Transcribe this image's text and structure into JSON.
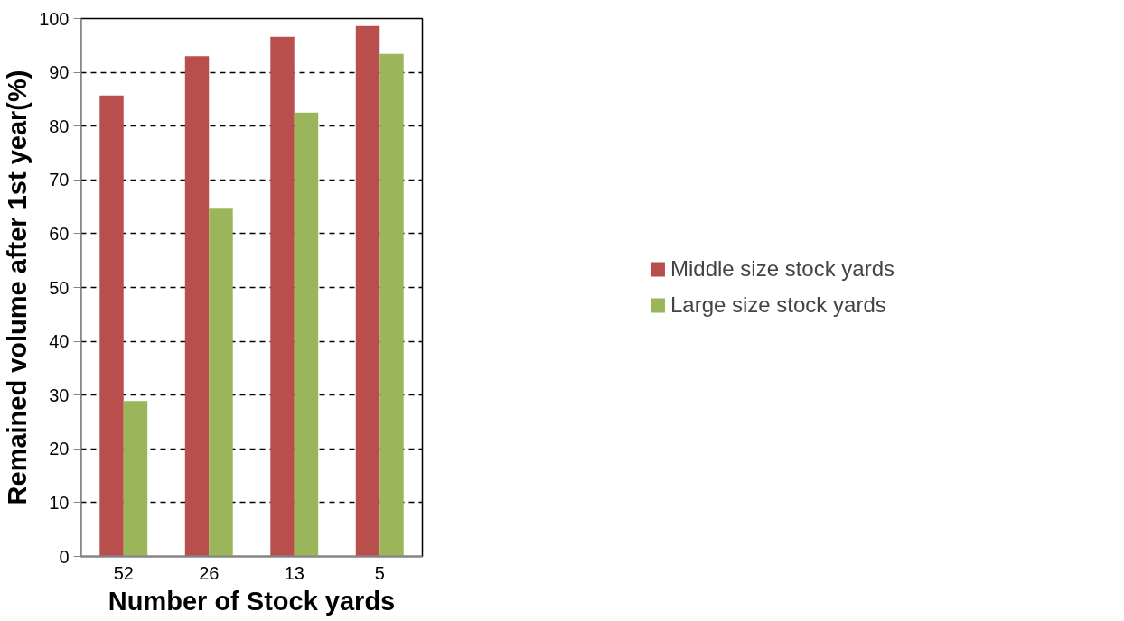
{
  "chart_data": {
    "type": "bar",
    "xlabel": "Number of Stock yards",
    "ylabel": "Remained volume after 1st year(%)",
    "categories": [
      "52",
      "26",
      "13",
      "5"
    ],
    "series": [
      {
        "name": "Middle size stock yards",
        "color": "#b94f4c",
        "values": [
          85.7,
          93.0,
          96.6,
          98.6
        ]
      },
      {
        "name": "Large size stock yards",
        "color": "#9bb55a",
        "values": [
          28.9,
          64.8,
          82.5,
          93.4
        ]
      }
    ],
    "ylim": [
      0,
      100
    ],
    "yticks": [
      0,
      10,
      20,
      30,
      40,
      50,
      60,
      70,
      80,
      90,
      100
    ],
    "grid": "y",
    "legend": "right"
  }
}
